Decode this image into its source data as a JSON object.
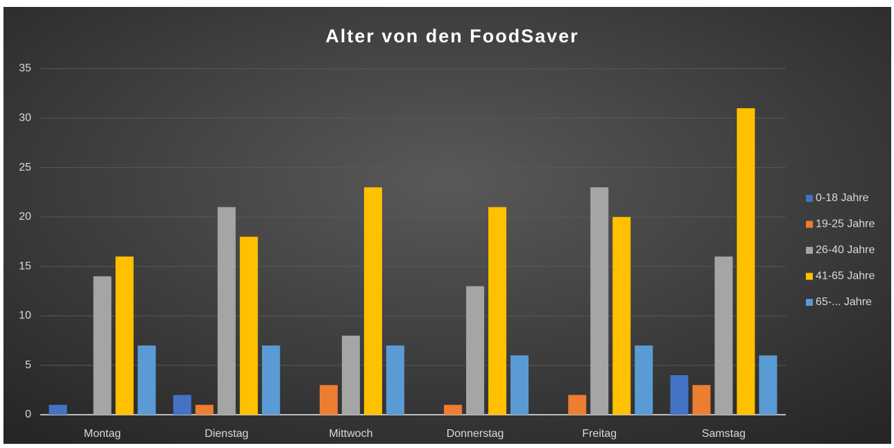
{
  "chart_data": {
    "type": "bar",
    "title": "Alter von den FoodSaver",
    "categories": [
      "Montag",
      "Dienstag",
      "Mittwoch",
      "Donnerstag",
      "Freitag",
      "Samstag"
    ],
    "series": [
      {
        "name": "0-18 Jahre",
        "color": "#4472c4",
        "values": [
          1,
          2,
          0,
          0,
          0,
          4
        ]
      },
      {
        "name": "19-25 Jahre",
        "color": "#ed7d31",
        "values": [
          0,
          1,
          3,
          1,
          2,
          3
        ]
      },
      {
        "name": "26-40 Jahre",
        "color": "#a5a5a5",
        "values": [
          14,
          21,
          8,
          13,
          23,
          16
        ]
      },
      {
        "name": "41-65 Jahre",
        "color": "#ffc000",
        "values": [
          16,
          18,
          23,
          21,
          20,
          31
        ]
      },
      {
        "name": "65-... Jahre",
        "color": "#5b9bd5",
        "values": [
          7,
          7,
          7,
          6,
          7,
          6
        ]
      }
    ],
    "ylim": [
      0,
      35
    ],
    "yticks": [
      0,
      5,
      10,
      15,
      20,
      25,
      30,
      35
    ],
    "grid": true,
    "legend": "right"
  }
}
